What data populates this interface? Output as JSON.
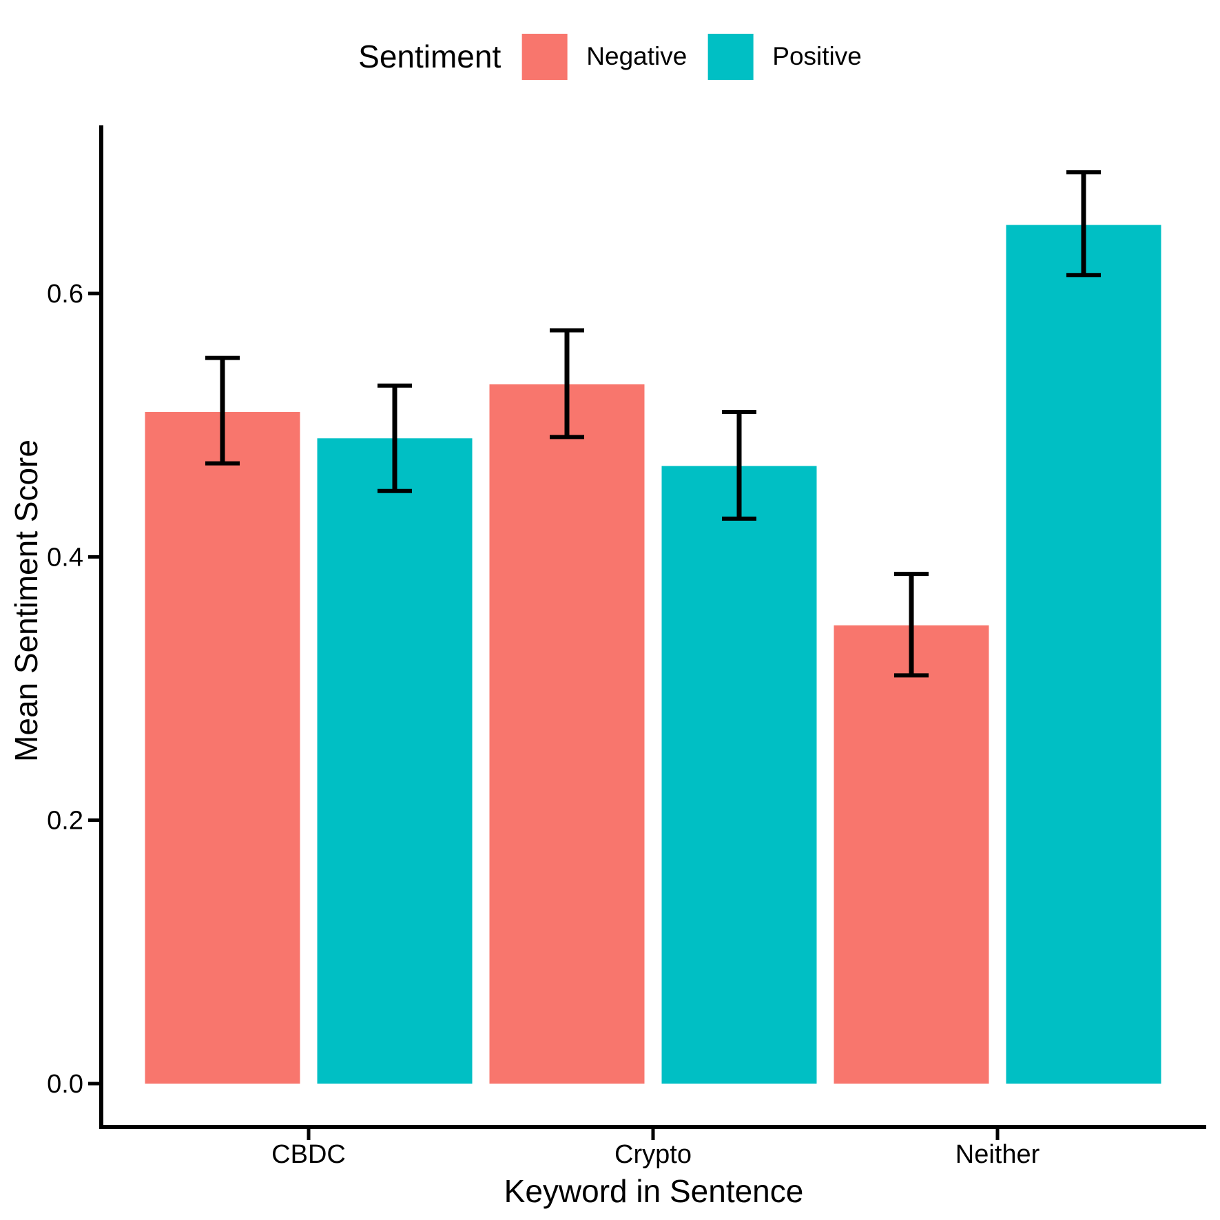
{
  "chart_data": {
    "type": "bar",
    "title": "",
    "xlabel": "Keyword in Sentence",
    "ylabel": "Mean Sentiment Score",
    "categories": [
      "CBDC",
      "Crypto",
      "Neither"
    ],
    "series": [
      {
        "name": "Negative",
        "color": "#F8766D",
        "values": [
          0.51,
          0.531,
          0.348
        ],
        "error_low": [
          0.471,
          0.491,
          0.31
        ],
        "error_high": [
          0.551,
          0.572,
          0.387
        ]
      },
      {
        "name": "Positive",
        "color": "#00BFC4",
        "values": [
          0.49,
          0.469,
          0.652
        ],
        "error_low": [
          0.45,
          0.429,
          0.614
        ],
        "error_high": [
          0.53,
          0.51,
          0.692
        ]
      }
    ],
    "y_ticks": [
      "0.0",
      "0.2",
      "0.4",
      "0.6"
    ],
    "y_tick_values": [
      0.0,
      0.2,
      0.4,
      0.6
    ],
    "ylim": [
      -0.035,
      0.727
    ],
    "grid": false,
    "legend": {
      "title": "Sentiment",
      "position": "top",
      "entries": [
        "Negative",
        "Positive"
      ]
    },
    "errorbar_color": "#000000",
    "axis_color": "#000000"
  }
}
